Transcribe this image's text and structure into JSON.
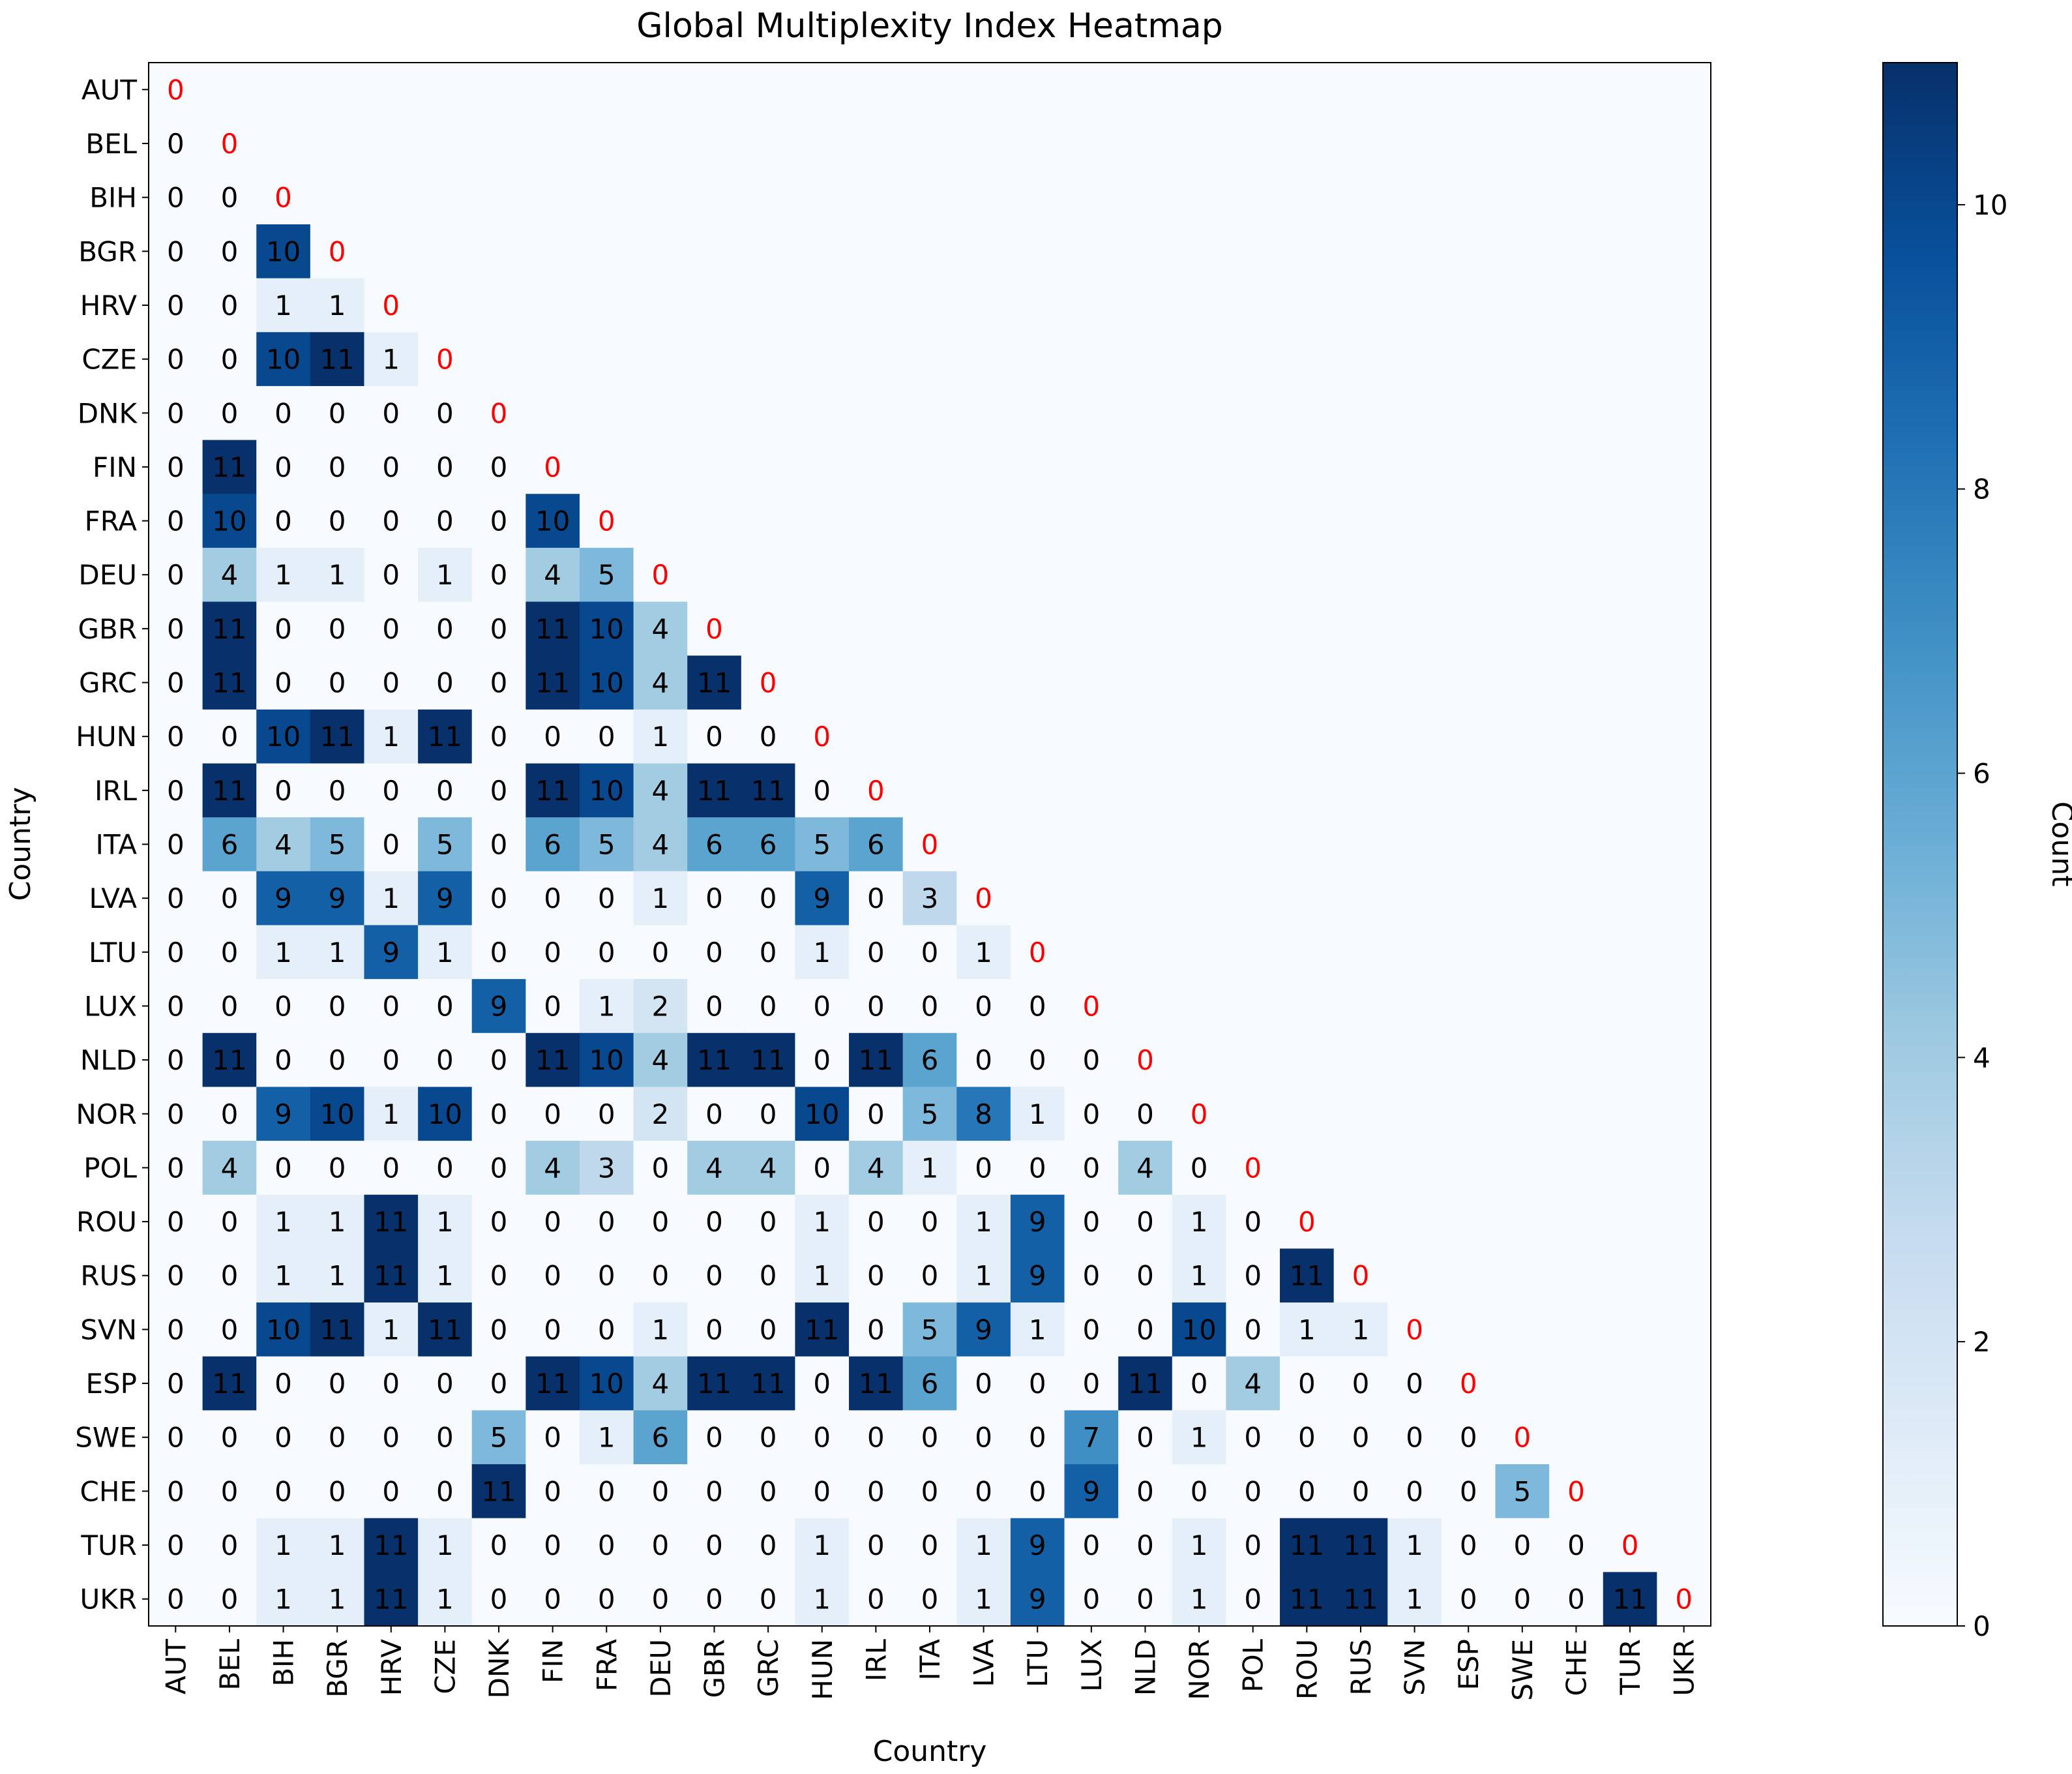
{
  "chart_data": {
    "type": "heatmap",
    "title": "Global Multiplexity Index Heatmap",
    "xlabel": "Country",
    "ylabel": "Country",
    "colorbar": {
      "label": "Count",
      "min": 0,
      "max": 11,
      "ticks": [
        "0",
        "2",
        "4",
        "6",
        "8",
        "10"
      ]
    },
    "countries": [
      "AUT",
      "BEL",
      "BIH",
      "BGR",
      "HRV",
      "CZE",
      "DNK",
      "FIN",
      "FRA",
      "DEU",
      "GBR",
      "GRC",
      "HUN",
      "IRL",
      "ITA",
      "LVA",
      "LTU",
      "LUX",
      "NLD",
      "NOR",
      "POL",
      "ROU",
      "RUS",
      "SVN",
      "ESP",
      "SWE",
      "CHE",
      "TUR",
      "UKR"
    ],
    "matrix": [
      [
        0
      ],
      [
        0,
        0
      ],
      [
        0,
        0,
        0
      ],
      [
        0,
        0,
        10,
        0
      ],
      [
        0,
        0,
        1,
        1,
        0
      ],
      [
        0,
        0,
        10,
        11,
        1,
        0
      ],
      [
        0,
        0,
        0,
        0,
        0,
        0,
        0
      ],
      [
        0,
        11,
        0,
        0,
        0,
        0,
        0,
        0
      ],
      [
        0,
        10,
        0,
        0,
        0,
        0,
        0,
        10,
        0
      ],
      [
        0,
        4,
        1,
        1,
        0,
        1,
        0,
        4,
        5,
        0
      ],
      [
        0,
        11,
        0,
        0,
        0,
        0,
        0,
        11,
        10,
        4,
        0
      ],
      [
        0,
        11,
        0,
        0,
        0,
        0,
        0,
        11,
        10,
        4,
        11,
        0
      ],
      [
        0,
        0,
        10,
        11,
        1,
        11,
        0,
        0,
        0,
        1,
        0,
        0,
        0
      ],
      [
        0,
        11,
        0,
        0,
        0,
        0,
        0,
        11,
        10,
        4,
        11,
        11,
        0,
        0
      ],
      [
        0,
        6,
        4,
        5,
        0,
        5,
        0,
        6,
        5,
        4,
        6,
        6,
        5,
        6,
        0
      ],
      [
        0,
        0,
        9,
        9,
        1,
        9,
        0,
        0,
        0,
        1,
        0,
        0,
        9,
        0,
        3,
        0
      ],
      [
        0,
        0,
        1,
        1,
        9,
        1,
        0,
        0,
        0,
        0,
        0,
        0,
        1,
        0,
        0,
        1,
        0
      ],
      [
        0,
        0,
        0,
        0,
        0,
        0,
        9,
        0,
        1,
        2,
        0,
        0,
        0,
        0,
        0,
        0,
        0,
        0
      ],
      [
        0,
        11,
        0,
        0,
        0,
        0,
        0,
        11,
        10,
        4,
        11,
        11,
        0,
        11,
        6,
        0,
        0,
        0,
        0
      ],
      [
        0,
        0,
        9,
        10,
        1,
        10,
        0,
        0,
        0,
        2,
        0,
        0,
        10,
        0,
        5,
        8,
        1,
        0,
        0,
        0
      ],
      [
        0,
        4,
        0,
        0,
        0,
        0,
        0,
        4,
        3,
        0,
        4,
        4,
        0,
        4,
        1,
        0,
        0,
        0,
        4,
        0,
        0
      ],
      [
        0,
        0,
        1,
        1,
        11,
        1,
        0,
        0,
        0,
        0,
        0,
        0,
        1,
        0,
        0,
        1,
        9,
        0,
        0,
        1,
        0,
        0
      ],
      [
        0,
        0,
        1,
        1,
        11,
        1,
        0,
        0,
        0,
        0,
        0,
        0,
        1,
        0,
        0,
        1,
        9,
        0,
        0,
        1,
        0,
        11,
        0
      ],
      [
        0,
        0,
        10,
        11,
        1,
        11,
        0,
        0,
        0,
        1,
        0,
        0,
        11,
        0,
        5,
        9,
        1,
        0,
        0,
        10,
        0,
        1,
        1,
        0
      ],
      [
        0,
        11,
        0,
        0,
        0,
        0,
        0,
        11,
        10,
        4,
        11,
        11,
        0,
        11,
        6,
        0,
        0,
        0,
        11,
        0,
        4,
        0,
        0,
        0,
        0
      ],
      [
        0,
        0,
        0,
        0,
        0,
        0,
        5,
        0,
        1,
        6,
        0,
        0,
        0,
        0,
        0,
        0,
        0,
        7,
        0,
        1,
        0,
        0,
        0,
        0,
        0,
        0
      ],
      [
        0,
        0,
        0,
        0,
        0,
        0,
        11,
        0,
        0,
        0,
        0,
        0,
        0,
        0,
        0,
        0,
        0,
        9,
        0,
        0,
        0,
        0,
        0,
        0,
        0,
        5,
        0
      ],
      [
        0,
        0,
        1,
        1,
        11,
        1,
        0,
        0,
        0,
        0,
        0,
        0,
        1,
        0,
        0,
        1,
        9,
        0,
        0,
        1,
        0,
        11,
        11,
        1,
        0,
        0,
        0,
        0
      ],
      [
        0,
        0,
        1,
        1,
        11,
        1,
        0,
        0,
        0,
        0,
        0,
        0,
        1,
        0,
        0,
        1,
        9,
        0,
        0,
        1,
        0,
        11,
        11,
        1,
        0,
        0,
        0,
        11,
        0
      ]
    ],
    "diagonal_color": "#ff0000",
    "colormap": "Blues"
  }
}
